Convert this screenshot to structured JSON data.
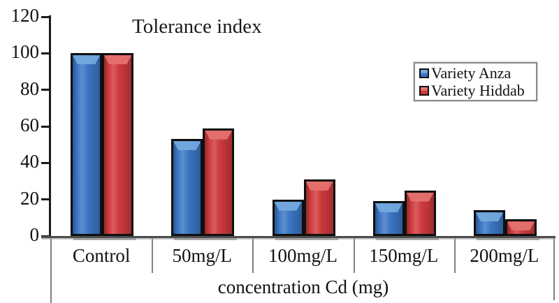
{
  "chart_data": {
    "type": "bar",
    "title": "Tolerance index",
    "xlabel": "concentration Cd (mg)",
    "ylabel": "",
    "categories": [
      "Control",
      "50mg/L",
      "100mg/L",
      "150mg/L",
      "200mg/L"
    ],
    "series": [
      {
        "name": "Variety Anza",
        "values": [
          100,
          53,
          20,
          19,
          14
        ],
        "color": "#3B76C4",
        "highlight": "#74A9DE"
      },
      {
        "name": "Variety Hiddab",
        "values": [
          100,
          59,
          31,
          25,
          9
        ],
        "color": "#CE3A3C",
        "highlight": "#E4716E"
      }
    ],
    "ylim": [
      0,
      120
    ],
    "yticks": [
      0,
      20,
      40,
      60,
      80,
      100,
      120
    ],
    "grid": false,
    "legend_position": "upper-right",
    "axis_color": "#1a1a1a",
    "frame_color": "#808080",
    "baseline_color": "#4d4d4d"
  }
}
